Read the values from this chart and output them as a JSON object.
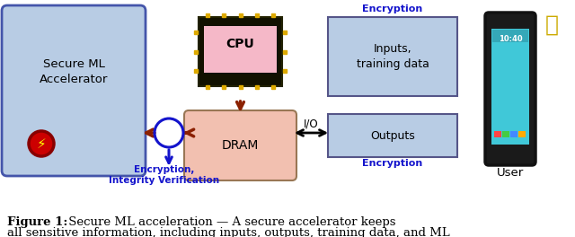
{
  "fig_width": 6.4,
  "fig_height": 2.64,
  "dpi": 100,
  "bg_color": "#ffffff",
  "blue": "#1414cc",
  "darkred": "#8b2000",
  "acc_color": "#b8cce4",
  "dram_color": "#f2c0b0",
  "cpu_color": "#f2a0b8",
  "io_color": "#b8cce4",
  "caption_bold": "Figure 1:",
  "caption_rest": " Secure ML acceleration — A secure accelerator keeps",
  "caption2": "all sensitive information, including inputs, outputs, training data, and ML"
}
